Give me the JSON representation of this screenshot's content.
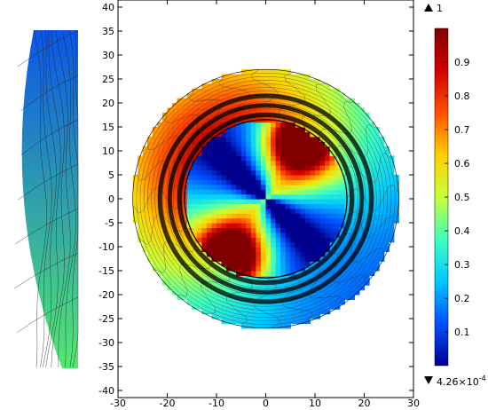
{
  "chart_data": {
    "type": "heatmap",
    "title": "",
    "xlabel": "",
    "ylabel": "",
    "xlim": [
      -30,
      30
    ],
    "ylim": [
      -40,
      40
    ],
    "x_ticks": [
      -30,
      -20,
      -10,
      0,
      10,
      20,
      30
    ],
    "y_ticks": [
      40,
      35,
      30,
      25,
      20,
      15,
      10,
      5,
      0,
      -5,
      -10,
      -15,
      -20,
      -25,
      -30,
      -35,
      -40
    ],
    "grid": false,
    "geometry": {
      "outer_radius": 27,
      "inner_radius": 16.5,
      "dark_band_radii": [
        17.5,
        19.5,
        21.5
      ]
    },
    "hot_spots": [
      {
        "x": 7,
        "y": 12,
        "value": 1.0
      },
      {
        "x": -7,
        "y": -12,
        "value": 1.0
      }
    ],
    "colorbar": {
      "min": 0.000426,
      "max": 1,
      "ticks": [
        0.1,
        0.2,
        0.3,
        0.4,
        0.5,
        0.6,
        0.7,
        0.8,
        0.9
      ],
      "tick_labels": [
        "0.1",
        "0.2",
        "0.3",
        "0.4",
        "0.5",
        "0.6",
        "0.7",
        "0.8",
        "0.9"
      ],
      "max_label": "1",
      "min_label_base": "4.26×10",
      "min_label_exp": "-4",
      "colors": [
        "#00008f",
        "#0050ff",
        "#00c8ff",
        "#40ffbf",
        "#c8ff38",
        "#ffd000",
        "#ff5000",
        "#d00000",
        "#800000"
      ]
    },
    "inset": {
      "description_color_top": "#0a55e8",
      "description_color_bottom": "#55e870"
    }
  }
}
